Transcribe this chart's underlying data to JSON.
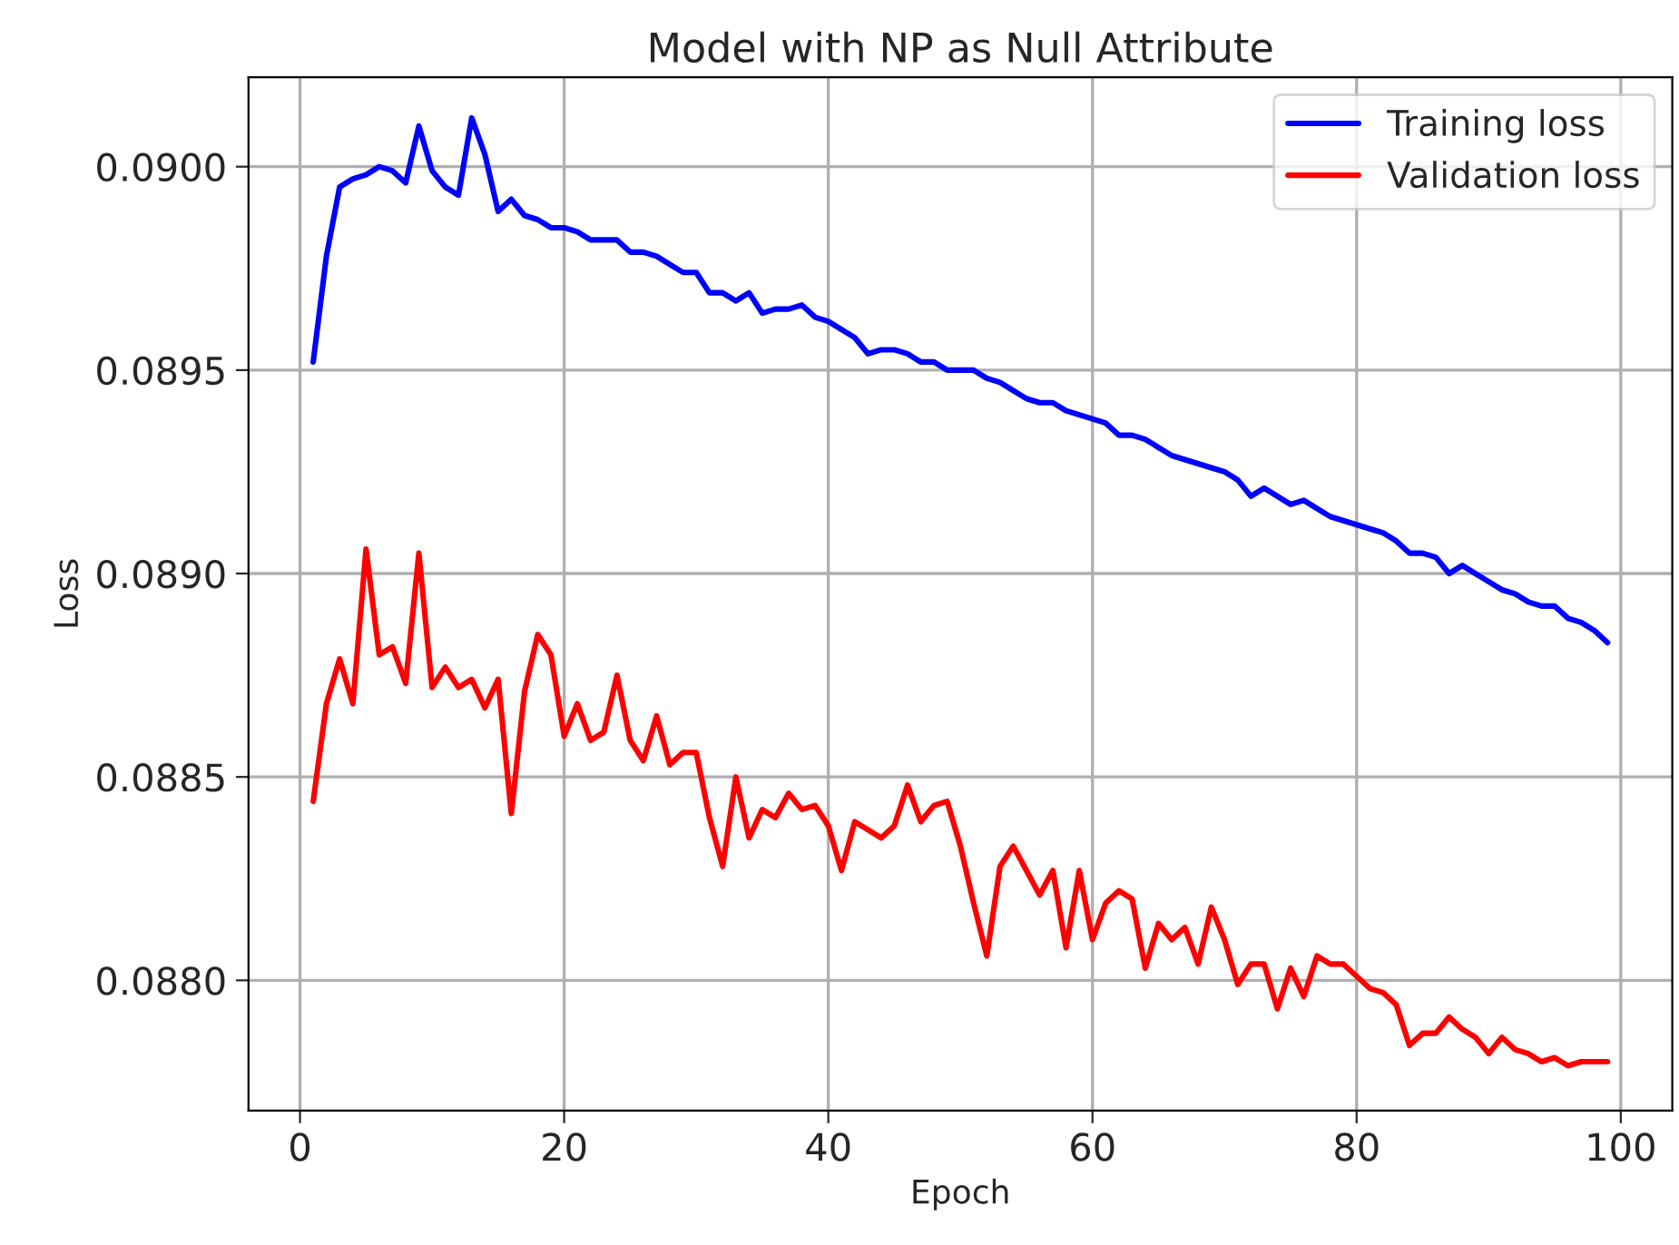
{
  "chart_data": {
    "type": "line",
    "title": "Model with NP as Null Attribute",
    "xlabel": "Epoch",
    "ylabel": "Loss",
    "x": [
      1,
      2,
      3,
      4,
      5,
      6,
      7,
      8,
      9,
      10,
      11,
      12,
      13,
      14,
      15,
      16,
      17,
      18,
      19,
      20,
      21,
      22,
      23,
      24,
      25,
      26,
      27,
      28,
      29,
      30,
      31,
      32,
      33,
      34,
      35,
      36,
      37,
      38,
      39,
      40,
      41,
      42,
      43,
      44,
      45,
      46,
      47,
      48,
      49,
      50,
      51,
      52,
      53,
      54,
      55,
      56,
      57,
      58,
      59,
      60,
      61,
      62,
      63,
      64,
      65,
      66,
      67,
      68,
      69,
      70,
      71,
      72,
      73,
      74,
      75,
      76,
      77,
      78,
      79,
      80,
      81,
      82,
      83,
      84,
      85,
      86,
      87,
      88,
      89,
      90,
      91,
      92,
      93,
      94,
      95,
      96,
      97,
      98,
      99
    ],
    "series": [
      {
        "name": "Training loss",
        "color": "#0000ff",
        "values": [
          0.08952,
          0.08978,
          0.08995,
          0.08997,
          0.08998,
          0.09,
          0.08999,
          0.08996,
          0.0901,
          0.08999,
          0.08995,
          0.08993,
          0.09012,
          0.09003,
          0.08989,
          0.08992,
          0.08988,
          0.08987,
          0.08985,
          0.08985,
          0.08984,
          0.08982,
          0.08982,
          0.08982,
          0.08979,
          0.08979,
          0.08978,
          0.08976,
          0.08974,
          0.08974,
          0.08969,
          0.08969,
          0.08967,
          0.08969,
          0.08964,
          0.08965,
          0.08965,
          0.08966,
          0.08963,
          0.08962,
          0.0896,
          0.08958,
          0.08954,
          0.08955,
          0.08955,
          0.08954,
          0.08952,
          0.08952,
          0.0895,
          0.0895,
          0.0895,
          0.08948,
          0.08947,
          0.08945,
          0.08943,
          0.08942,
          0.08942,
          0.0894,
          0.08939,
          0.08938,
          0.08937,
          0.08934,
          0.08934,
          0.08933,
          0.08931,
          0.08929,
          0.08928,
          0.08927,
          0.08926,
          0.08925,
          0.08923,
          0.08919,
          0.08921,
          0.08919,
          0.08917,
          0.08918,
          0.08916,
          0.08914,
          0.08913,
          0.08912,
          0.08911,
          0.0891,
          0.08908,
          0.08905,
          0.08905,
          0.08904,
          0.089,
          0.08902,
          0.089,
          0.08898,
          0.08896,
          0.08895,
          0.08893,
          0.08892,
          0.08892,
          0.08889,
          0.08888,
          0.08886,
          0.08883
        ]
      },
      {
        "name": "Validation loss",
        "color": "#ff0000",
        "values": [
          0.08844,
          0.08868,
          0.08879,
          0.08868,
          0.08906,
          0.0888,
          0.08882,
          0.08873,
          0.08905,
          0.08872,
          0.08877,
          0.08872,
          0.08874,
          0.08867,
          0.08874,
          0.08841,
          0.08871,
          0.08885,
          0.0888,
          0.0886,
          0.08868,
          0.08859,
          0.08861,
          0.08875,
          0.08859,
          0.08854,
          0.08865,
          0.08853,
          0.08856,
          0.08856,
          0.0884,
          0.08828,
          0.0885,
          0.08835,
          0.08842,
          0.0884,
          0.08846,
          0.08842,
          0.08843,
          0.08838,
          0.08827,
          0.08839,
          0.08837,
          0.08835,
          0.08838,
          0.08848,
          0.08839,
          0.08843,
          0.08844,
          0.08833,
          0.08819,
          0.08806,
          0.08828,
          0.08833,
          0.08827,
          0.08821,
          0.08827,
          0.08808,
          0.08827,
          0.0881,
          0.08819,
          0.08822,
          0.0882,
          0.08803,
          0.08814,
          0.0881,
          0.08813,
          0.08804,
          0.08818,
          0.0881,
          0.08799,
          0.08804,
          0.08804,
          0.08793,
          0.08803,
          0.08796,
          0.08806,
          0.08804,
          0.08804,
          0.08801,
          0.08798,
          0.08797,
          0.08794,
          0.08784,
          0.08787,
          0.08787,
          0.08791,
          0.08788,
          0.08786,
          0.08782,
          0.08786,
          0.08783,
          0.08782,
          0.0878,
          0.08781,
          0.08779,
          0.0878,
          0.0878,
          0.0878
        ]
      }
    ],
    "xlim": [
      -3.9,
      103.9
    ],
    "xticks": [
      0,
      20,
      40,
      60,
      80,
      100
    ],
    "ylim": [
      0.08768,
      0.09022
    ],
    "yticks": [
      {
        "value": 0.088,
        "label": "0.0880"
      },
      {
        "value": 0.0885,
        "label": "0.0885"
      },
      {
        "value": 0.089,
        "label": "0.0890"
      },
      {
        "value": 0.0895,
        "label": "0.0895"
      },
      {
        "value": 0.09,
        "label": "0.0900"
      }
    ],
    "grid": true,
    "legend": "upper right",
    "line_style": "solid",
    "marker": "none"
  }
}
